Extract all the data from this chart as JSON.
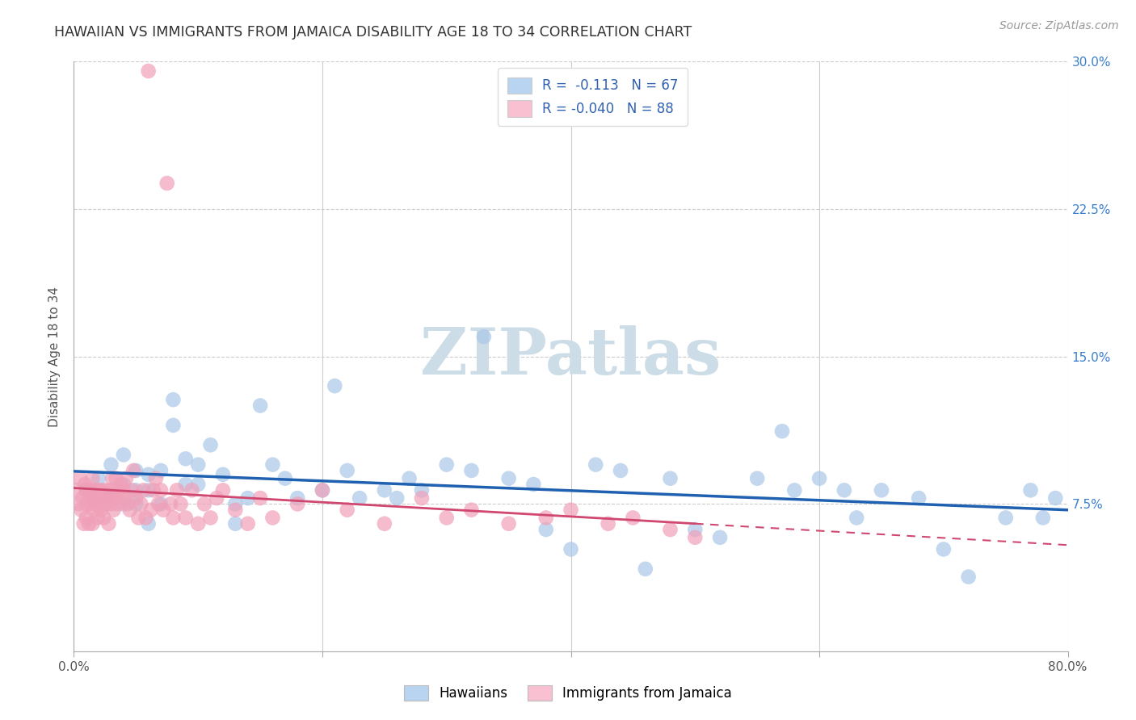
{
  "title": "HAWAIIAN VS IMMIGRANTS FROM JAMAICA DISABILITY AGE 18 TO 34 CORRELATION CHART",
  "source": "Source: ZipAtlas.com",
  "ylabel": "Disability Age 18 to 34",
  "xmin": 0.0,
  "xmax": 0.8,
  "ymin": 0.0,
  "ymax": 0.3,
  "xticks": [
    0.0,
    0.2,
    0.4,
    0.6,
    0.8
  ],
  "xticklabels": [
    "0.0%",
    "",
    "",
    "",
    "80.0%"
  ],
  "yticks": [
    0.0,
    0.075,
    0.15,
    0.225,
    0.3
  ],
  "yticklabels_right": [
    "",
    "7.5%",
    "15.0%",
    "22.5%",
    "30.0%"
  ],
  "hawaiians_R": -0.113,
  "hawaiians_N": 67,
  "jamaica_R": -0.04,
  "jamaica_N": 88,
  "blue_color": "#aac8e8",
  "pink_color": "#f0a0b8",
  "blue_line_color": "#2060b0",
  "pink_line_color": "#d04870",
  "legend_blue_color": "#b8d4f0",
  "legend_pink_color": "#f8c0d0",
  "watermark": "ZIPatlas",
  "watermark_color": "#ccdde8",
  "hawaiians_x": [
    0.01,
    0.015,
    0.02,
    0.025,
    0.03,
    0.03,
    0.04,
    0.04,
    0.04,
    0.05,
    0.05,
    0.05,
    0.06,
    0.06,
    0.06,
    0.07,
    0.07,
    0.08,
    0.08,
    0.09,
    0.09,
    0.1,
    0.1,
    0.11,
    0.12,
    0.13,
    0.13,
    0.14,
    0.15,
    0.16,
    0.17,
    0.18,
    0.2,
    0.21,
    0.22,
    0.23,
    0.25,
    0.26,
    0.27,
    0.28,
    0.3,
    0.32,
    0.33,
    0.35,
    0.37,
    0.38,
    0.4,
    0.42,
    0.44,
    0.46,
    0.48,
    0.5,
    0.52,
    0.55,
    0.57,
    0.58,
    0.6,
    0.62,
    0.63,
    0.65,
    0.68,
    0.7,
    0.72,
    0.75,
    0.77,
    0.78,
    0.79
  ],
  "hawaiians_y": [
    0.082,
    0.078,
    0.088,
    0.075,
    0.08,
    0.095,
    0.075,
    0.1,
    0.085,
    0.075,
    0.082,
    0.092,
    0.065,
    0.082,
    0.09,
    0.075,
    0.092,
    0.115,
    0.128,
    0.085,
    0.098,
    0.085,
    0.095,
    0.105,
    0.09,
    0.075,
    0.065,
    0.078,
    0.125,
    0.095,
    0.088,
    0.078,
    0.082,
    0.135,
    0.092,
    0.078,
    0.082,
    0.078,
    0.088,
    0.082,
    0.095,
    0.092,
    0.16,
    0.088,
    0.085,
    0.062,
    0.052,
    0.095,
    0.092,
    0.042,
    0.088,
    0.062,
    0.058,
    0.088,
    0.112,
    0.082,
    0.088,
    0.082,
    0.068,
    0.082,
    0.078,
    0.052,
    0.038,
    0.068,
    0.082,
    0.068,
    0.078
  ],
  "jamaica_x": [
    0.002,
    0.004,
    0.005,
    0.006,
    0.007,
    0.008,
    0.009,
    0.01,
    0.01,
    0.01,
    0.012,
    0.012,
    0.013,
    0.014,
    0.015,
    0.015,
    0.016,
    0.017,
    0.018,
    0.019,
    0.02,
    0.02,
    0.021,
    0.022,
    0.023,
    0.024,
    0.025,
    0.026,
    0.027,
    0.028,
    0.03,
    0.03,
    0.031,
    0.032,
    0.033,
    0.034,
    0.035,
    0.036,
    0.038,
    0.04,
    0.04,
    0.042,
    0.043,
    0.045,
    0.047,
    0.048,
    0.05,
    0.052,
    0.054,
    0.056,
    0.058,
    0.06,
    0.062,
    0.064,
    0.066,
    0.068,
    0.07,
    0.072,
    0.075,
    0.078,
    0.08,
    0.083,
    0.086,
    0.09,
    0.095,
    0.1,
    0.105,
    0.11,
    0.115,
    0.12,
    0.13,
    0.14,
    0.15,
    0.16,
    0.18,
    0.2,
    0.22,
    0.25,
    0.28,
    0.3,
    0.32,
    0.35,
    0.38,
    0.4,
    0.43,
    0.45,
    0.48,
    0.5
  ],
  "jamaica_y": [
    0.082,
    0.075,
    0.088,
    0.072,
    0.078,
    0.065,
    0.085,
    0.082,
    0.075,
    0.068,
    0.078,
    0.065,
    0.082,
    0.075,
    0.088,
    0.065,
    0.072,
    0.082,
    0.075,
    0.068,
    0.082,
    0.078,
    0.075,
    0.072,
    0.082,
    0.068,
    0.075,
    0.082,
    0.078,
    0.065,
    0.082,
    0.075,
    0.088,
    0.072,
    0.078,
    0.088,
    0.075,
    0.082,
    0.085,
    0.078,
    0.082,
    0.088,
    0.075,
    0.072,
    0.082,
    0.092,
    0.078,
    0.068,
    0.075,
    0.082,
    0.068,
    0.295,
    0.072,
    0.082,
    0.088,
    0.075,
    0.082,
    0.072,
    0.238,
    0.075,
    0.068,
    0.082,
    0.075,
    0.068,
    0.082,
    0.065,
    0.075,
    0.068,
    0.078,
    0.082,
    0.072,
    0.065,
    0.078,
    0.068,
    0.075,
    0.082,
    0.072,
    0.065,
    0.078,
    0.068,
    0.072,
    0.065,
    0.068,
    0.072,
    0.065,
    0.068,
    0.062,
    0.058
  ]
}
